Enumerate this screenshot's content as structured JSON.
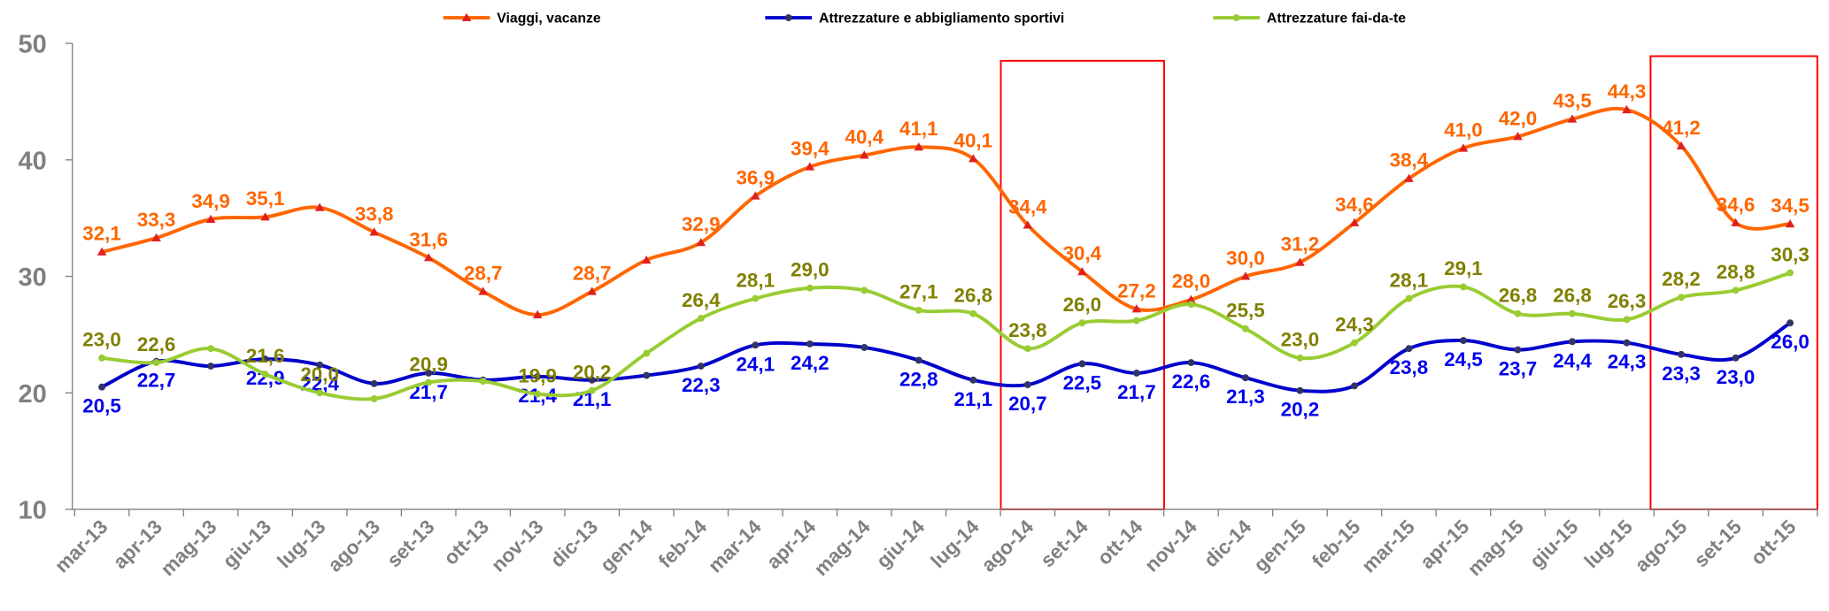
{
  "chart_data": {
    "type": "line",
    "categories": [
      "mar-13",
      "apr-13",
      "mag-13",
      "giu-13",
      "lug-13",
      "ago-13",
      "set-13",
      "ott-13",
      "nov-13",
      "dic-13",
      "gen-14",
      "feb-14",
      "mar-14",
      "apr-14",
      "mag-14",
      "giu-14",
      "lug-14",
      "ago-14",
      "set-14",
      "ott-14",
      "nov-14",
      "dic-14",
      "gen-15",
      "feb-15",
      "mar-15",
      "apr-15",
      "mag-15",
      "giu-15",
      "lug-15",
      "ago-15",
      "set-15",
      "ott-15"
    ],
    "series": [
      {
        "name": "Viaggi, vacanze",
        "color": "#ff6600",
        "marker_color": "#e02020",
        "label_color": "#ff6600",
        "values": [
          32.1,
          33.3,
          34.9,
          35.1,
          35.9,
          33.8,
          31.6,
          28.7,
          26.7,
          28.7,
          31.4,
          32.9,
          36.9,
          39.4,
          40.4,
          41.1,
          40.1,
          34.4,
          30.4,
          27.2,
          28.0,
          30.0,
          31.2,
          34.6,
          38.4,
          41.0,
          42.0,
          43.5,
          44.3,
          41.2,
          34.6,
          34.5
        ],
        "value_labels": [
          "32,1",
          "33,3",
          "34,9",
          "35,1",
          null,
          "33,8",
          "31,6",
          "28,7",
          null,
          "28,7",
          null,
          "32,9",
          "36,9",
          "39,4",
          "40,4",
          "41,1",
          "40,1",
          "34,4",
          "30,4",
          "27,2",
          "28,0",
          "30,0",
          "31,2",
          "34,6",
          "38,4",
          "41,0",
          "42,0",
          "43,5",
          "44,3",
          "41,2",
          "34,6",
          "34,5"
        ]
      },
      {
        "name": "Attrezzature e abbigliamento sportivi",
        "color": "#0000cc",
        "marker_color": "#333366",
        "label_color": "#0000ee",
        "values": [
          20.5,
          22.7,
          22.3,
          22.9,
          22.4,
          20.8,
          21.7,
          21.1,
          21.4,
          21.1,
          21.5,
          22.3,
          24.1,
          24.2,
          23.9,
          22.8,
          21.1,
          20.7,
          22.5,
          21.7,
          22.6,
          21.3,
          20.2,
          20.6,
          23.8,
          24.5,
          23.7,
          24.4,
          24.3,
          23.3,
          23.0,
          26.0
        ],
        "value_labels": [
          "20,5",
          "22,7",
          null,
          "22,9",
          "22,4",
          null,
          "21,7",
          null,
          "21,4",
          "21,1",
          null,
          "22,3",
          "24,1",
          "24,2",
          null,
          "22,8",
          "21,1",
          "20,7",
          "22,5",
          "21,7",
          "22,6",
          "21,3",
          "20,2",
          null,
          "23,8",
          "24,5",
          "23,7",
          "24,4",
          "24,3",
          "23,3",
          "23,0",
          "26,0"
        ]
      },
      {
        "name": "Attrezzature fai-da-te",
        "color": "#99cc33",
        "marker_color": "#99cc33",
        "label_color": "#808000",
        "values": [
          23.0,
          22.6,
          23.8,
          21.6,
          20.0,
          19.5,
          20.9,
          21.0,
          19.9,
          20.2,
          23.4,
          26.4,
          28.1,
          29.0,
          28.8,
          27.1,
          26.8,
          23.8,
          26.0,
          26.2,
          27.6,
          25.5,
          23.0,
          24.3,
          28.1,
          29.1,
          26.8,
          26.8,
          26.3,
          28.2,
          28.8,
          30.3
        ],
        "value_labels": [
          "23,0",
          "22,6",
          null,
          "21,6",
          "20,0",
          null,
          "20,9",
          null,
          "19,9",
          "20,2",
          null,
          "26,4",
          "28,1",
          "29,0",
          null,
          "27,1",
          "26,8",
          "23,8",
          "26,0",
          null,
          null,
          "25,5",
          "23,0",
          "24,3",
          "28,1",
          "29,1",
          "26,8",
          "26,8",
          "26,3",
          "28,2",
          "28,8",
          "30,3"
        ]
      }
    ],
    "ylim": [
      10,
      50
    ],
    "yticks": [
      10,
      20,
      30,
      40,
      50
    ],
    "legend": "top"
  }
}
